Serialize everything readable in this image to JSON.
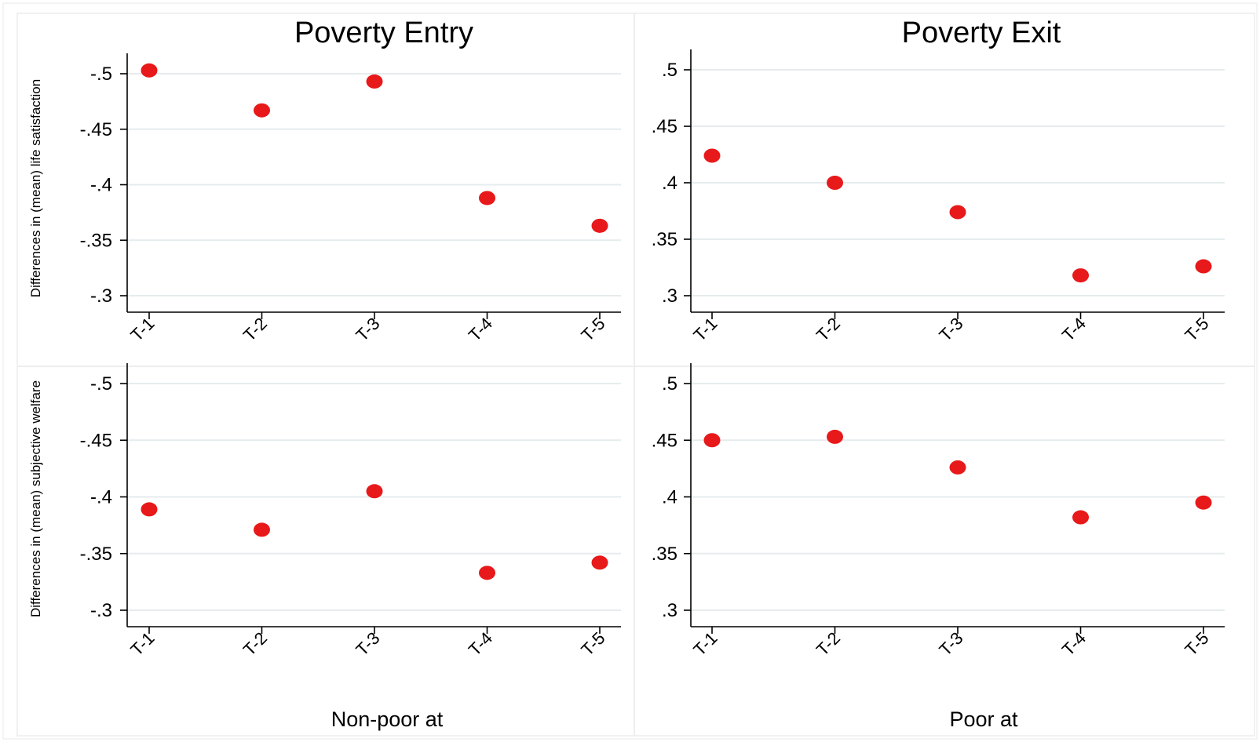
{
  "chart_data": [
    {
      "type": "scatter",
      "title": "Poverty Entry",
      "ylabel": "Differences in (mean) life satisfaction",
      "xlabel": "",
      "categories": [
        "T-1",
        "T-2",
        "T-3",
        "T-4",
        "T-5"
      ],
      "values": [
        -0.503,
        -0.467,
        -0.493,
        -0.388,
        -0.363
      ],
      "yticks": [
        -0.5,
        -0.45,
        -0.4,
        -0.35,
        -0.3
      ],
      "ytick_labels": [
        "-.5",
        "-.45",
        "-.4",
        "-.35",
        "-.3"
      ],
      "ylim": [
        -0.3,
        -0.5
      ],
      "grid": true,
      "marker_color": "#e8191a"
    },
    {
      "type": "scatter",
      "title": "Poverty Exit",
      "ylabel": "",
      "xlabel": "",
      "categories": [
        "T-1",
        "T-2",
        "T-3",
        "T-4",
        "T-5"
      ],
      "values": [
        0.424,
        0.4,
        0.374,
        0.318,
        0.326
      ],
      "yticks": [
        0.5,
        0.45,
        0.4,
        0.35,
        0.3
      ],
      "ytick_labels": [
        ".5",
        ".45",
        ".4",
        ".35",
        ".3"
      ],
      "ylim": [
        0.3,
        0.5
      ],
      "grid": true,
      "marker_color": "#e8191a"
    },
    {
      "type": "scatter",
      "title": "",
      "ylabel": "Differences in (mean) subjective welfare",
      "xlabel": "Non-poor at",
      "categories": [
        "T-1",
        "T-2",
        "T-3",
        "T-4",
        "T-5"
      ],
      "values": [
        -0.389,
        -0.371,
        -0.405,
        -0.333,
        -0.342
      ],
      "yticks": [
        -0.5,
        -0.45,
        -0.4,
        -0.35,
        -0.3
      ],
      "ytick_labels": [
        "-.5",
        "-.45",
        "-.4",
        "-.35",
        "-.3"
      ],
      "ylim": [
        -0.3,
        -0.5
      ],
      "grid": true,
      "marker_color": "#e8191a"
    },
    {
      "type": "scatter",
      "title": "",
      "ylabel": "",
      "xlabel": "Poor at",
      "categories": [
        "T-1",
        "T-2",
        "T-3",
        "T-4",
        "T-5"
      ],
      "values": [
        0.45,
        0.453,
        0.426,
        0.382,
        0.395
      ],
      "yticks": [
        0.5,
        0.45,
        0.4,
        0.35,
        0.3
      ],
      "ytick_labels": [
        ".5",
        ".45",
        ".4",
        ".35",
        ".3"
      ],
      "ylim": [
        0.3,
        0.5
      ],
      "grid": true,
      "marker_color": "#e8191a"
    }
  ]
}
